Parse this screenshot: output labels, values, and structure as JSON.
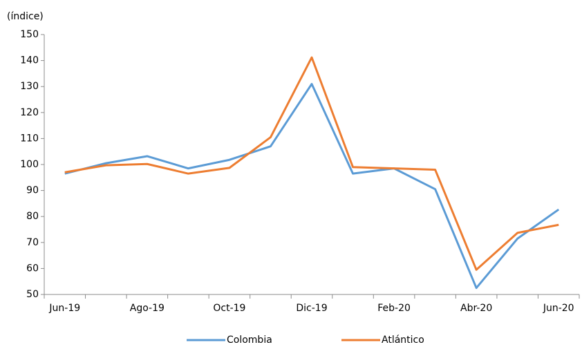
{
  "chart_data": {
    "type": "line",
    "y_axis_label": "(índice)",
    "categories": [
      "Jun-19",
      null,
      "Ago-19",
      null,
      "Oct-19",
      null,
      "Dic-19",
      null,
      "Feb-20",
      null,
      "Abr-20",
      null,
      "Jun-20"
    ],
    "series": [
      {
        "name": "Colombia",
        "color": "#5b9bd5",
        "values": [
          96.5,
          100.5,
          103.2,
          98.5,
          101.8,
          107,
          131,
          96.5,
          98.5,
          90.5,
          52.5,
          71.5,
          82.7
        ]
      },
      {
        "name": "Atlántico",
        "color": "#ed7d31",
        "values": [
          97,
          99.7,
          100.2,
          96.5,
          98.7,
          110.5,
          141.2,
          99,
          98.5,
          98,
          59.5,
          73.7,
          76.8
        ]
      }
    ],
    "ylim": [
      50,
      150
    ],
    "yticks": [
      50,
      60,
      70,
      80,
      90,
      100,
      110,
      120,
      130,
      140,
      150
    ],
    "grid": false,
    "legend": "bottom"
  }
}
